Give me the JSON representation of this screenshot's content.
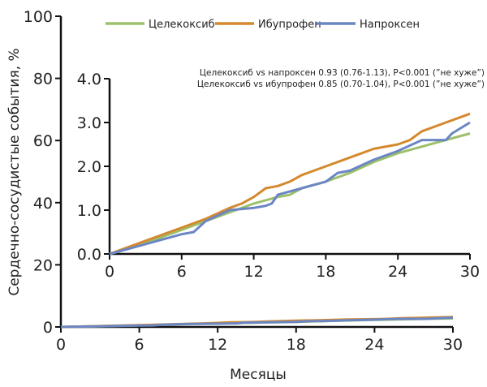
{
  "chart_data": [
    {
      "type": "line",
      "title": "",
      "xlabel": "Месяцы",
      "ylabel": "Сердечно-сосудистые события, %",
      "xlim": [
        0,
        30
      ],
      "ylim": [
        0,
        100
      ],
      "xticks": [
        "0",
        "6",
        "12",
        "18",
        "24",
        "30"
      ],
      "yticks": [
        "0",
        "20",
        "40",
        "60",
        "80",
        "100"
      ],
      "grid": false,
      "legend_position": "top",
      "legend": [
        "Целекоксиб",
        "Ибупрофен",
        "Напроксен"
      ],
      "series": [
        {
          "name": "Целекоксиб",
          "color": "#9dc06a",
          "x": [
            0,
            2,
            4,
            6,
            8,
            10,
            12,
            14,
            15,
            16,
            18,
            20,
            22,
            24,
            26,
            28,
            30
          ],
          "y": [
            0,
            0.15,
            0.35,
            0.55,
            0.75,
            0.95,
            1.15,
            1.3,
            1.35,
            1.5,
            1.65,
            1.85,
            2.1,
            2.3,
            2.45,
            2.6,
            2.75
          ]
        },
        {
          "name": "Ибупрофен",
          "color": "#d4892e",
          "x": [
            0,
            2,
            4,
            6,
            8,
            10,
            11,
            12,
            13,
            14,
            15,
            16,
            18,
            20,
            22,
            24,
            25,
            26,
            28,
            30
          ],
          "y": [
            0,
            0.2,
            0.4,
            0.6,
            0.8,
            1.05,
            1.15,
            1.3,
            1.5,
            1.55,
            1.65,
            1.8,
            2.0,
            2.2,
            2.4,
            2.5,
            2.6,
            2.8,
            3.0,
            3.2
          ]
        },
        {
          "name": "Напроксен",
          "color": "#6b86c4",
          "x": [
            0,
            2,
            4,
            6,
            7,
            8,
            10,
            12,
            13,
            13.5,
            14,
            16,
            18,
            19,
            20,
            22,
            24,
            26,
            28,
            28.5,
            30
          ],
          "y": [
            0,
            0.15,
            0.3,
            0.45,
            0.5,
            0.75,
            1.0,
            1.05,
            1.1,
            1.15,
            1.35,
            1.5,
            1.65,
            1.85,
            1.9,
            2.15,
            2.35,
            2.6,
            2.6,
            2.75,
            3.0
          ]
        }
      ]
    },
    {
      "type": "line",
      "title": "",
      "xlim": [
        0,
        30
      ],
      "ylim": [
        0,
        4
      ],
      "xticks": [
        "0",
        "6",
        "12",
        "18",
        "24",
        "30"
      ],
      "yticks": [
        "0.0",
        "1.0",
        "2.0",
        "3.0",
        "4.0"
      ],
      "note": "inset zoom of same series",
      "annotations": [
        "Целекоксиб vs напроксен 0.93 (0.76-1.13), P<0.001 (”не хуже”)",
        "Целекоксиб vs ибупрофен 0.85 (0.70-1.04), P<0.001 (”не хуже”)"
      ]
    }
  ]
}
